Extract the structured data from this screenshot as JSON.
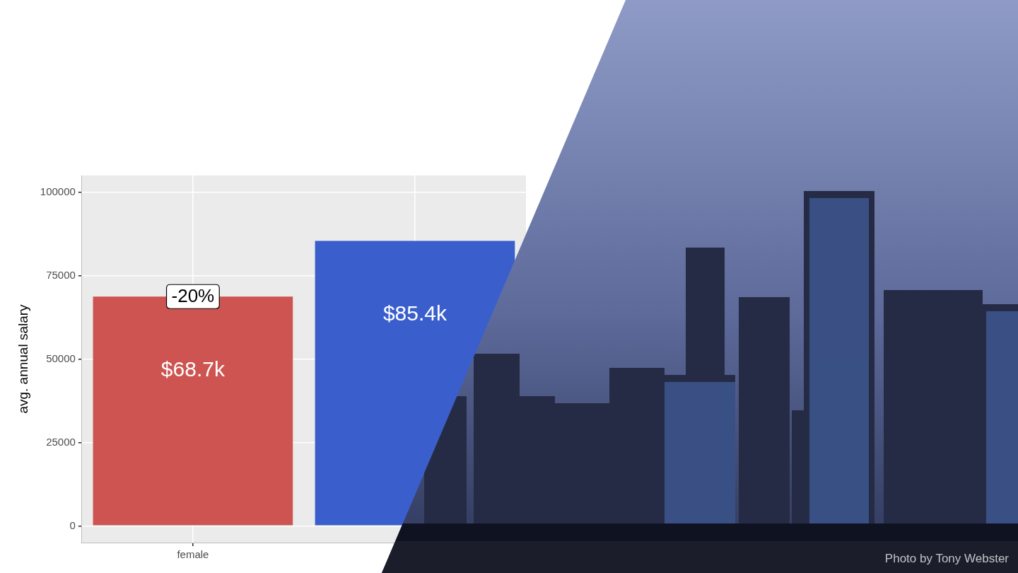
{
  "chart_data": {
    "type": "bar",
    "y_label": "avg. annual salary",
    "categories": [
      "female",
      null
    ],
    "values": [
      68700,
      85400
    ],
    "value_labels": [
      "$68.7k",
      "$85.4k"
    ],
    "data_labels": true,
    "colors": [
      "#cd5450",
      "#3a5fcd"
    ],
    "ylim": [
      -5000,
      105000
    ],
    "yticks": [
      0,
      25000,
      50000,
      75000,
      100000
    ],
    "grid": true,
    "annotations": [
      {
        "text": "-20%",
        "category": "female"
      }
    ]
  },
  "photo": {
    "credit": "Photo by Tony Webster"
  }
}
